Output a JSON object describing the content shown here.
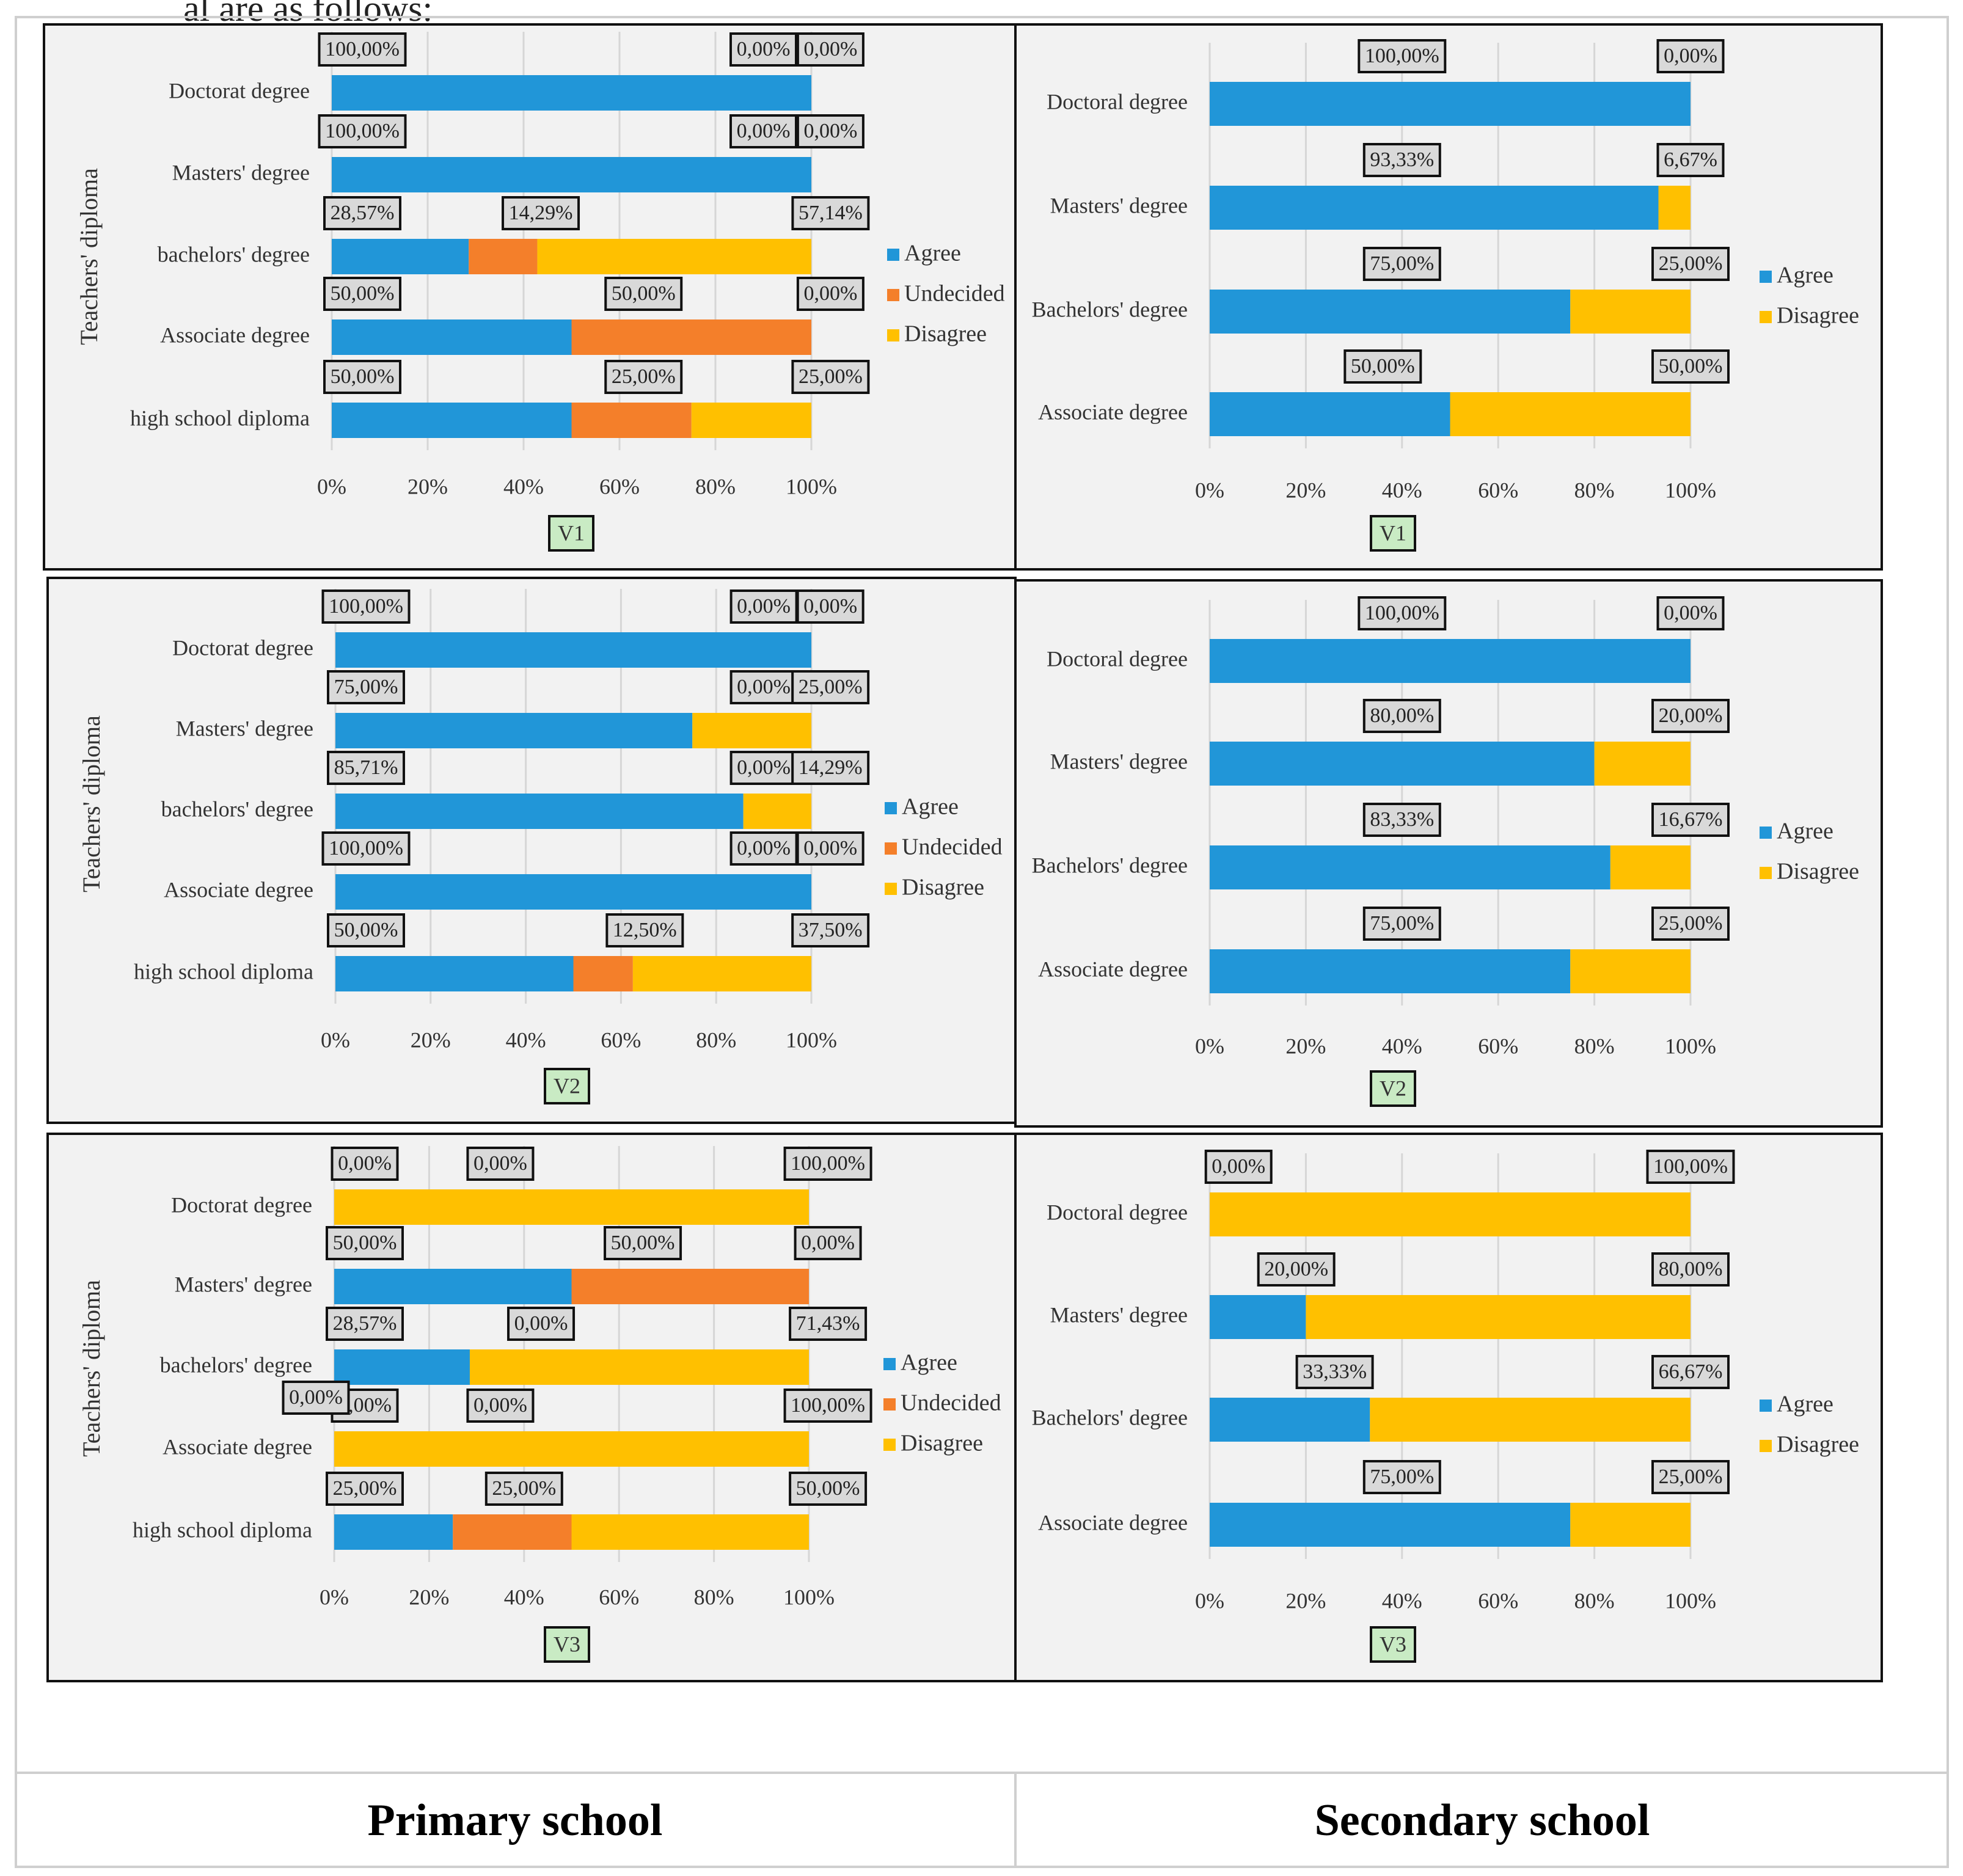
{
  "header_fragment": "al are as follows:",
  "captions": {
    "primary": "Primary school",
    "secondary": "Secondary school"
  },
  "colors": {
    "agree": "#2196d8",
    "undecided": "#f47f2a",
    "disagree": "#ffc000",
    "panel_bg": "#f2f2f2",
    "tag_bg": "#c9ebc4",
    "label_bg": "#d9d9d9"
  },
  "chart_data": [
    {
      "id": "primary-v1",
      "type": "bar",
      "stacked": true,
      "orientation": "horizontal",
      "tag": "V1",
      "ylabel": "Teachers' diploma",
      "categories": [
        "Doctorat degree",
        "Masters' degree",
        "bachelors' degree",
        "Associate degree",
        "high school diploma"
      ],
      "series": [
        {
          "name": "Agree",
          "values": [
            100,
            100,
            28.57,
            50,
            50
          ]
        },
        {
          "name": "Undecided",
          "values": [
            0,
            0,
            14.29,
            50,
            25
          ]
        },
        {
          "name": "Disagree",
          "values": [
            0,
            0,
            57.14,
            0,
            25
          ]
        }
      ],
      "labels": [
        [
          "100,00%",
          "0,00%",
          "0,00%"
        ],
        [
          "100,00%",
          "0,00%",
          "0,00%"
        ],
        [
          "28,57%",
          "14,29%",
          "57,14%"
        ],
        [
          "50,00%",
          "50,00%",
          "0,00%"
        ],
        [
          "50,00%",
          "25,00%",
          "25,00%"
        ]
      ],
      "xticks": [
        "0%",
        "20%",
        "40%",
        "60%",
        "80%",
        "100%"
      ],
      "legend": [
        "Agree",
        "Undecided",
        "Disagree"
      ],
      "legend_position": "right"
    },
    {
      "id": "secondary-v1",
      "type": "bar",
      "stacked": true,
      "orientation": "horizontal",
      "tag": "V1",
      "ylabel": "",
      "categories": [
        "Doctoral degree",
        "Masters' degree",
        "Bachelors' degree",
        "Associate degree"
      ],
      "series": [
        {
          "name": "Agree",
          "values": [
            100,
            93.33,
            75,
            50
          ]
        },
        {
          "name": "Disagree",
          "values": [
            0,
            6.67,
            25,
            50
          ]
        }
      ],
      "labels": [
        [
          "100,00%",
          "0,00%"
        ],
        [
          "93,33%",
          "6,67%"
        ],
        [
          "75,00%",
          "25,00%"
        ],
        [
          "50,00%",
          "50,00%"
        ]
      ],
      "xticks": [
        "0%",
        "20%",
        "40%",
        "60%",
        "80%",
        "100%"
      ],
      "legend": [
        "Agree",
        "Disagree"
      ],
      "legend_position": "right"
    },
    {
      "id": "primary-v2",
      "type": "bar",
      "stacked": true,
      "orientation": "horizontal",
      "tag": "V2",
      "ylabel": "Teachers' diploma",
      "categories": [
        "Doctorat degree",
        "Masters' degree",
        "bachelors' degree",
        "Associate degree",
        "high school diploma"
      ],
      "series": [
        {
          "name": "Agree",
          "values": [
            100,
            75,
            85.71,
            100,
            50
          ]
        },
        {
          "name": "Undecided",
          "values": [
            0,
            0,
            0,
            0,
            12.5
          ]
        },
        {
          "name": "Disagree",
          "values": [
            0,
            25,
            14.29,
            0,
            37.5
          ]
        }
      ],
      "labels": [
        [
          "100,00%",
          "0,00%",
          "0,00%"
        ],
        [
          "75,00%",
          "0,00%",
          "25,00%"
        ],
        [
          "85,71%",
          "0,00%",
          "14,29%"
        ],
        [
          "100,00%",
          "0,00%",
          "0,00%"
        ],
        [
          "50,00%",
          "12,50%",
          "37,50%"
        ]
      ],
      "xticks": [
        "0%",
        "20%",
        "40%",
        "60%",
        "80%",
        "100%"
      ],
      "legend": [
        "Agree",
        "Undecided",
        "Disagree"
      ],
      "legend_position": "right"
    },
    {
      "id": "secondary-v2",
      "type": "bar",
      "stacked": true,
      "orientation": "horizontal",
      "tag": "V2",
      "ylabel": "",
      "categories": [
        "Doctoral degree",
        "Masters' degree",
        "Bachelors' degree",
        "Associate degree"
      ],
      "series": [
        {
          "name": "Agree",
          "values": [
            100,
            80,
            83.33,
            75
          ]
        },
        {
          "name": "Disagree",
          "values": [
            0,
            20,
            16.67,
            25
          ]
        }
      ],
      "labels": [
        [
          "100,00%",
          "0,00%"
        ],
        [
          "80,00%",
          "20,00%"
        ],
        [
          "83,33%",
          "16,67%"
        ],
        [
          "75,00%",
          "25,00%"
        ]
      ],
      "xticks": [
        "0%",
        "20%",
        "40%",
        "60%",
        "80%",
        "100%"
      ],
      "legend": [
        "Agree",
        "Disagree"
      ],
      "legend_position": "right"
    },
    {
      "id": "primary-v3",
      "type": "bar",
      "stacked": true,
      "orientation": "horizontal",
      "tag": "V3",
      "ylabel": "Teachers' diploma",
      "categories": [
        "Doctorat degree",
        "Masters' degree",
        "bachelors' degree",
        "Associate degree",
        "high school diploma"
      ],
      "series": [
        {
          "name": "Agree",
          "values": [
            0,
            50,
            28.57,
            0,
            25
          ]
        },
        {
          "name": "Undecided",
          "values": [
            0,
            50,
            0,
            0,
            25
          ]
        },
        {
          "name": "Disagree",
          "values": [
            100,
            0,
            71.43,
            100,
            50
          ]
        }
      ],
      "labels": [
        [
          "0,00%",
          "0,00%",
          "100,00%"
        ],
        [
          "50,00%",
          "50,00%",
          "0,00%"
        ],
        [
          "28,57%",
          "0,00%",
          "71,43%"
        ],
        [
          "0,00%",
          "0,00%",
          "100,00%"
        ],
        [
          "25,00%",
          "25,00%",
          "50,00%"
        ]
      ],
      "extra_label": "0,00%",
      "xticks": [
        "0%",
        "20%",
        "40%",
        "60%",
        "80%",
        "100%"
      ],
      "legend": [
        "Agree",
        "Undecided",
        "Disagree"
      ],
      "legend_position": "right"
    },
    {
      "id": "secondary-v3",
      "type": "bar",
      "stacked": true,
      "orientation": "horizontal",
      "tag": "V3",
      "ylabel": "",
      "categories": [
        "Doctoral degree",
        "Masters' degree",
        "Bachelors' degree",
        "Associate degree"
      ],
      "series": [
        {
          "name": "Agree",
          "values": [
            0,
            20,
            33.33,
            75
          ]
        },
        {
          "name": "Disagree",
          "values": [
            100,
            80,
            66.67,
            25
          ]
        }
      ],
      "labels": [
        [
          "0,00%",
          "100,00%"
        ],
        [
          "20,00%",
          "80,00%"
        ],
        [
          "33,33%",
          "66,67%"
        ],
        [
          "75,00%",
          "25,00%"
        ]
      ],
      "xticks": [
        "0%",
        "20%",
        "40%",
        "60%",
        "80%",
        "100%"
      ],
      "legend": [
        "Agree",
        "Disagree"
      ],
      "legend_position": "right"
    }
  ]
}
